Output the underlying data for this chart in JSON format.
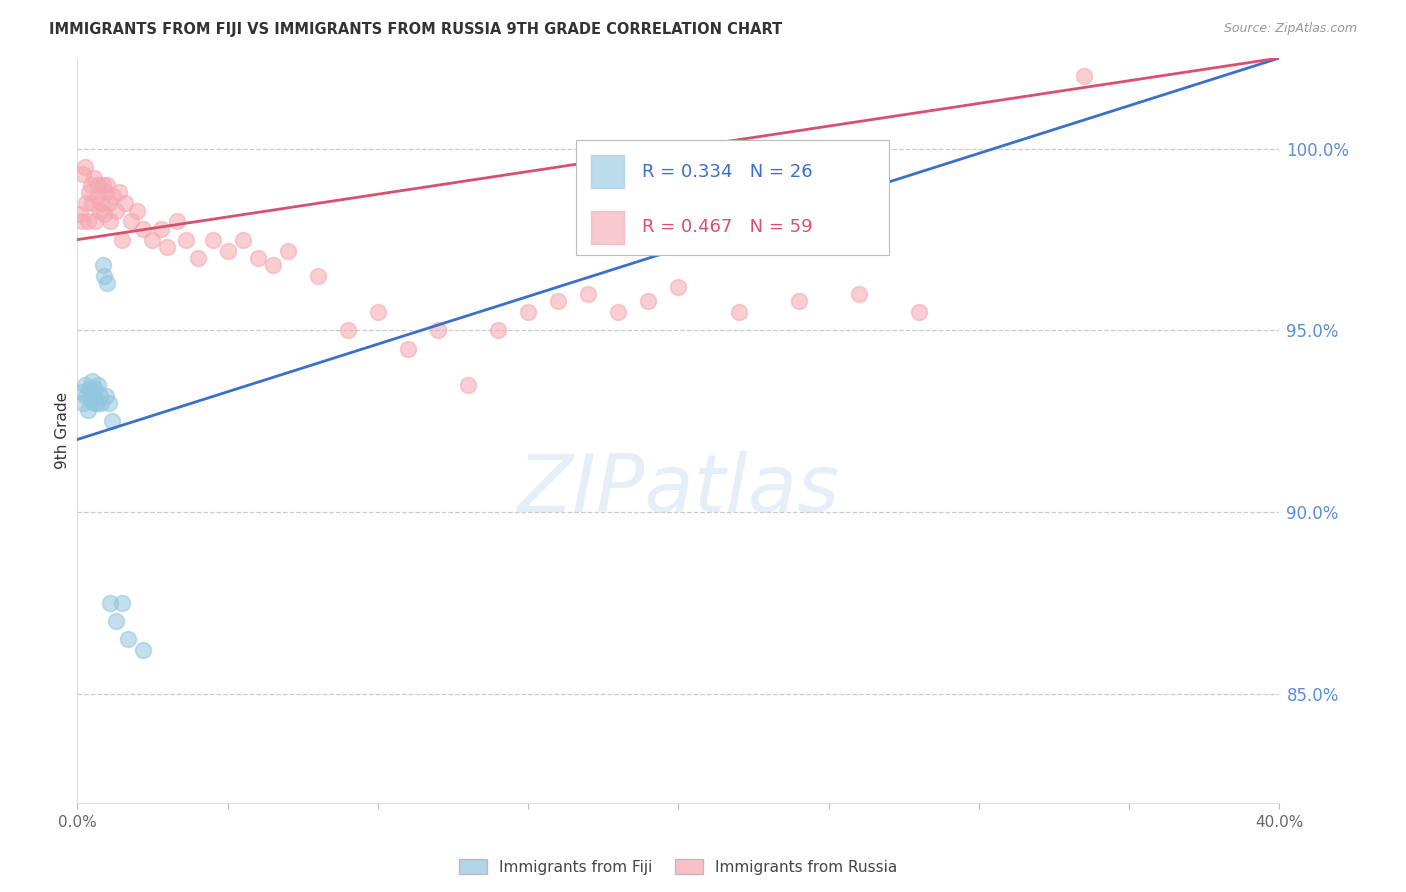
{
  "title": "IMMIGRANTS FROM FIJI VS IMMIGRANTS FROM RUSSIA 9TH GRADE CORRELATION CHART",
  "source_text": "Source: ZipAtlas.com",
  "ylabel": "9th Grade",
  "xlim": [
    0.0,
    40.0
  ],
  "ylim": [
    82.0,
    102.5
  ],
  "x_tick_positions": [
    0.0,
    5.0,
    10.0,
    15.0,
    20.0,
    25.0,
    30.0,
    35.0,
    40.0
  ],
  "x_tick_labels": [
    "0.0%",
    "",
    "",
    "",
    "",
    "",
    "",
    "",
    "40.0%"
  ],
  "y_ticks_right": [
    85.0,
    90.0,
    95.0,
    100.0
  ],
  "y_tick_labels_right": [
    "85.0%",
    "90.0%",
    "95.0%",
    "100.0%"
  ],
  "fiji_R": 0.334,
  "fiji_N": 26,
  "russia_R": 0.467,
  "russia_N": 59,
  "fiji_color": "#92c5de",
  "russia_color": "#f4a7b0",
  "fiji_line_color": "#3a6fcc",
  "russia_line_color": "#d94f6e",
  "watermark_text": "ZIPatlas",
  "fiji_x": [
    0.15,
    0.2,
    0.25,
    0.3,
    0.35,
    0.4,
    0.45,
    0.5,
    0.55,
    0.55,
    0.6,
    0.65,
    0.7,
    0.75,
    0.8,
    0.85,
    0.9,
    0.95,
    1.0,
    1.05,
    1.1,
    1.15,
    1.3,
    1.5,
    1.7,
    2.2
  ],
  "fiji_y": [
    93.3,
    93.0,
    93.5,
    93.2,
    92.8,
    93.4,
    93.1,
    93.6,
    93.0,
    93.3,
    93.4,
    93.0,
    93.5,
    93.2,
    93.0,
    96.8,
    96.5,
    93.2,
    96.3,
    93.0,
    87.5,
    92.5,
    87.0,
    87.5,
    86.5,
    86.2
  ],
  "russia_x": [
    0.1,
    0.15,
    0.2,
    0.25,
    0.3,
    0.35,
    0.4,
    0.45,
    0.5,
    0.55,
    0.6,
    0.65,
    0.7,
    0.75,
    0.8,
    0.85,
    0.9,
    0.95,
    1.0,
    1.05,
    1.1,
    1.2,
    1.3,
    1.4,
    1.5,
    1.6,
    1.8,
    2.0,
    2.2,
    2.5,
    2.8,
    3.0,
    3.3,
    3.6,
    4.0,
    4.5,
    5.0,
    5.5,
    6.0,
    6.5,
    7.0,
    8.0,
    9.0,
    10.0,
    11.0,
    12.0,
    13.0,
    14.0,
    15.0,
    16.0,
    17.0,
    18.0,
    19.0,
    20.0,
    22.0,
    24.0,
    26.0,
    28.0,
    33.5
  ],
  "russia_y": [
    98.2,
    98.0,
    99.3,
    99.5,
    98.5,
    98.0,
    98.8,
    99.0,
    98.5,
    99.2,
    98.0,
    98.7,
    99.0,
    98.3,
    98.5,
    99.0,
    98.2,
    98.8,
    99.0,
    98.5,
    98.0,
    98.7,
    98.3,
    98.8,
    97.5,
    98.5,
    98.0,
    98.3,
    97.8,
    97.5,
    97.8,
    97.3,
    98.0,
    97.5,
    97.0,
    97.5,
    97.2,
    97.5,
    97.0,
    96.8,
    97.2,
    96.5,
    95.0,
    95.5,
    94.5,
    95.0,
    93.5,
    95.0,
    95.5,
    95.8,
    96.0,
    95.5,
    95.8,
    96.2,
    95.5,
    95.8,
    96.0,
    95.5,
    102.0
  ],
  "fiji_line_x0": 0.0,
  "fiji_line_y0": 92.0,
  "fiji_line_x1": 40.0,
  "fiji_line_y1": 102.5,
  "russia_line_x0": 0.0,
  "russia_line_y0": 97.5,
  "russia_line_x1": 40.0,
  "russia_line_y1": 102.5
}
